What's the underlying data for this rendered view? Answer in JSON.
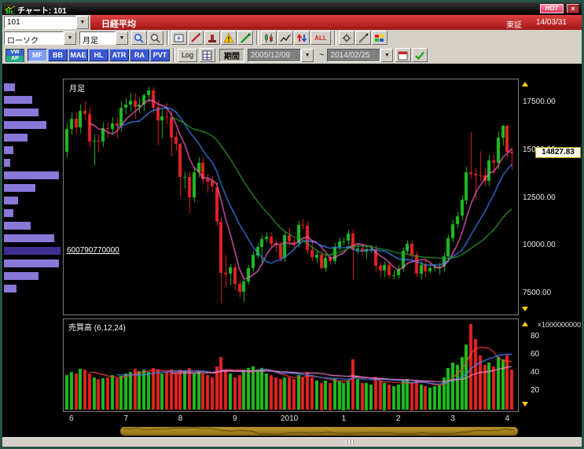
{
  "window": {
    "title": "チャート: 101",
    "hot_label": "HOT",
    "close_label": "×"
  },
  "ui": {
    "combo_arrow": "▼"
  },
  "header": {
    "code": "101",
    "name": "日経平均",
    "exchange": "東証",
    "date": "14/03/31"
  },
  "toolbar_main": {
    "chart_type": "ローソク",
    "timeframe": "月足",
    "all_label": "ALL"
  },
  "toolbar_indicators": {
    "vwap_top": "VW",
    "vwap_bottom": "AP",
    "indicators": [
      {
        "label": "MF",
        "selected": true
      },
      {
        "label": "BB",
        "selected": false
      },
      {
        "label": "MAE",
        "selected": false
      },
      {
        "label": "HL",
        "selected": false
      },
      {
        "label": "ATR",
        "selected": false
      },
      {
        "label": "RA",
        "selected": false
      },
      {
        "label": "PVT",
        "selected": false
      }
    ],
    "log_label": "Log",
    "period_label": "期間",
    "date_from": "2005/12/09",
    "tilde": "~",
    "date_to": "2014/02/25"
  },
  "chart_data": {
    "type": "candlestick",
    "pane_label": "月足",
    "volume_label": "売買高 (6,12,24)",
    "volume_unit": "×1000000000",
    "price_tag": "14827.83",
    "profile_value": "600790770000",
    "price_ticks": [
      17500,
      15000,
      12500,
      10000,
      7500
    ],
    "volume_ticks": [
      80,
      60,
      40,
      20
    ],
    "x_labels": [
      {
        "label": "6",
        "index": 1
      },
      {
        "label": "7",
        "index": 13
      },
      {
        "label": "8",
        "index": 25
      },
      {
        "label": "9",
        "index": 37
      },
      {
        "label": "2010",
        "index": 49
      },
      {
        "label": "1",
        "index": 61
      },
      {
        "label": "2",
        "index": 73
      },
      {
        "label": "3",
        "index": 85
      },
      {
        "label": "4",
        "index": 97
      }
    ],
    "ma_periods": [
      6,
      12,
      24
    ],
    "price_range": [
      6400,
      18700
    ],
    "volume_max": 100,
    "candles": [
      [
        14900,
        16430,
        14600,
        16111
      ],
      [
        16111,
        16980,
        15790,
        16649
      ],
      [
        16649,
        16980,
        15880,
        16205
      ],
      [
        16205,
        17400,
        15880,
        17060
      ],
      [
        17060,
        17560,
        16570,
        16906
      ],
      [
        16906,
        17240,
        15160,
        15467
      ],
      [
        15467,
        15820,
        14200,
        15505
      ],
      [
        15505,
        15810,
        14870,
        15457
      ],
      [
        15457,
        16460,
        15150,
        16141
      ],
      [
        16141,
        16460,
        15610,
        16128
      ],
      [
        16128,
        16730,
        15810,
        16399
      ],
      [
        16399,
        16730,
        15620,
        16274
      ],
      [
        16274,
        17570,
        15950,
        17226
      ],
      [
        17226,
        17730,
        16880,
        17383
      ],
      [
        17383,
        18000,
        17030,
        17604
      ],
      [
        17604,
        17960,
        16640,
        17288
      ],
      [
        17288,
        17750,
        16940,
        17400
      ],
      [
        17400,
        17960,
        17050,
        17876
      ],
      [
        17876,
        18300,
        17520,
        18138
      ],
      [
        18138,
        18300,
        16900,
        17249
      ],
      [
        17249,
        17590,
        15260,
        16569
      ],
      [
        16569,
        17120,
        15620,
        16786
      ],
      [
        16786,
        17460,
        16360,
        16738
      ],
      [
        16738,
        17070,
        14670,
        15681
      ],
      [
        15681,
        16000,
        14990,
        15308
      ],
      [
        15308,
        15400,
        12570,
        13592
      ],
      [
        13592,
        13880,
        12990,
        13603
      ],
      [
        13603,
        13880,
        11690,
        12526
      ],
      [
        12526,
        14130,
        12270,
        13850
      ],
      [
        13850,
        14630,
        13570,
        14339
      ],
      [
        14339,
        14630,
        13210,
        13481
      ],
      [
        13481,
        13750,
        12760,
        13377
      ],
      [
        13377,
        13640,
        12810,
        13073
      ],
      [
        13073,
        13330,
        11030,
        11260
      ],
      [
        11260,
        11490,
        6995,
        8577
      ],
      [
        8577,
        9520,
        7860,
        8512
      ],
      [
        8512,
        9040,
        7920,
        8860
      ],
      [
        8860,
        9040,
        7670,
        7994
      ],
      [
        7994,
        8150,
        7270,
        7568
      ],
      [
        7568,
        8270,
        7050,
        8110
      ],
      [
        8110,
        9000,
        7950,
        8828
      ],
      [
        8828,
        9710,
        8650,
        9523
      ],
      [
        9523,
        10160,
        9330,
        9958
      ],
      [
        9958,
        10560,
        9050,
        10357
      ],
      [
        10357,
        10700,
        10150,
        10493
      ],
      [
        10493,
        10700,
        9930,
        10133
      ],
      [
        10133,
        10340,
        9670,
        10035
      ],
      [
        10035,
        10230,
        9160,
        9346
      ],
      [
        9346,
        10760,
        9160,
        10546
      ],
      [
        10546,
        10960,
        9990,
        10198
      ],
      [
        10198,
        10400,
        9870,
        10126
      ],
      [
        10126,
        11310,
        9920,
        11090
      ],
      [
        11090,
        11400,
        10840,
        11057
      ],
      [
        11057,
        11280,
        9570,
        9769
      ],
      [
        9769,
        10250,
        9190,
        9383
      ],
      [
        9383,
        9730,
        9090,
        9537
      ],
      [
        9537,
        9730,
        8800,
        8824
      ],
      [
        8824,
        9560,
        8650,
        9369
      ],
      [
        9369,
        9560,
        9020,
        9202
      ],
      [
        9202,
        10140,
        9020,
        9937
      ],
      [
        9937,
        10430,
        9740,
        10229
      ],
      [
        10229,
        10440,
        10030,
        10238
      ],
      [
        10238,
        10840,
        10030,
        10624
      ],
      [
        10624,
        10840,
        8230,
        9755
      ],
      [
        9755,
        10050,
        9560,
        9850
      ],
      [
        9850,
        10050,
        9500,
        9694
      ],
      [
        9694,
        10010,
        9320,
        9816
      ],
      [
        9816,
        10030,
        9620,
        9833
      ],
      [
        9833,
        10030,
        8660,
        8955
      ],
      [
        8955,
        9130,
        8360,
        8700
      ],
      [
        8700,
        9170,
        8340,
        8988
      ],
      [
        8988,
        9170,
        8270,
        8435
      ],
      [
        8435,
        8720,
        8240,
        8455
      ],
      [
        8455,
        8980,
        8290,
        8803
      ],
      [
        8803,
        9920,
        8630,
        9723
      ],
      [
        9723,
        10290,
        9530,
        10084
      ],
      [
        10084,
        10290,
        9330,
        9521
      ],
      [
        9521,
        9710,
        8370,
        8543
      ],
      [
        8543,
        9190,
        8240,
        9007
      ],
      [
        9007,
        9190,
        8370,
        8695
      ],
      [
        8695,
        9020,
        8520,
        8840
      ],
      [
        8840,
        9050,
        8660,
        8870
      ],
      [
        8870,
        9110,
        8490,
        8928
      ],
      [
        8928,
        9640,
        8620,
        9446
      ],
      [
        9446,
        10600,
        9260,
        10395
      ],
      [
        10395,
        11360,
        10190,
        11139
      ],
      [
        11139,
        11790,
        10920,
        11559
      ],
      [
        11559,
        12650,
        11330,
        12398
      ],
      [
        12398,
        14140,
        12150,
        13861
      ],
      [
        13861,
        15940,
        13500,
        13775
      ],
      [
        13775,
        14050,
        12410,
        13677
      ],
      [
        13677,
        14950,
        13400,
        13668
      ],
      [
        13668,
        14070,
        13120,
        13389
      ],
      [
        13389,
        14750,
        13120,
        14456
      ],
      [
        14456,
        14750,
        13750,
        14328
      ],
      [
        14328,
        15980,
        13990,
        15662
      ],
      [
        15662,
        16320,
        15250,
        16291
      ],
      [
        16291,
        16320,
        14620,
        14915
      ],
      [
        14915,
        15140,
        13990,
        14828
      ]
    ],
    "volumes": [
      38,
      42,
      40,
      45,
      44,
      40,
      36,
      34,
      35,
      36,
      38,
      35,
      37,
      40,
      42,
      45,
      43,
      44,
      42,
      46,
      44,
      40,
      42,
      44,
      40,
      44,
      42,
      46,
      40,
      42,
      40,
      38,
      36,
      48,
      58,
      44,
      40,
      36,
      38,
      44,
      46,
      48,
      44,
      46,
      40,
      38,
      36,
      34,
      36,
      36,
      34,
      38,
      36,
      42,
      36,
      32,
      30,
      32,
      30,
      34,
      32,
      30,
      32,
      56,
      34,
      30,
      30,
      28,
      36,
      32,
      30,
      28,
      26,
      28,
      32,
      34,
      30,
      32,
      28,
      26,
      24,
      26,
      28,
      36,
      46,
      52,
      50,
      58,
      72,
      95,
      78,
      60,
      50,
      52,
      48,
      58,
      56,
      60,
      44
    ],
    "profile_bars": [
      14,
      36,
      44,
      54,
      30,
      12,
      8,
      70,
      40,
      18,
      12,
      34,
      64,
      72,
      70,
      44,
      16
    ],
    "profile_selected_index": 13,
    "colors": {
      "up": "#1fbf1f",
      "down": "#e62222",
      "ma6": "#ff66cc",
      "ma12": "#3a8cff",
      "ma24": "#2ca02c",
      "vol_ma6": "#ff4040",
      "vol_ma12": "#4488ff",
      "vol_ma24": "#ff88dd",
      "profile": "#8878d8",
      "profile_selected": "#3d2f8f",
      "gold": "#a9831e",
      "gold_dark": "#4f3e07"
    }
  }
}
